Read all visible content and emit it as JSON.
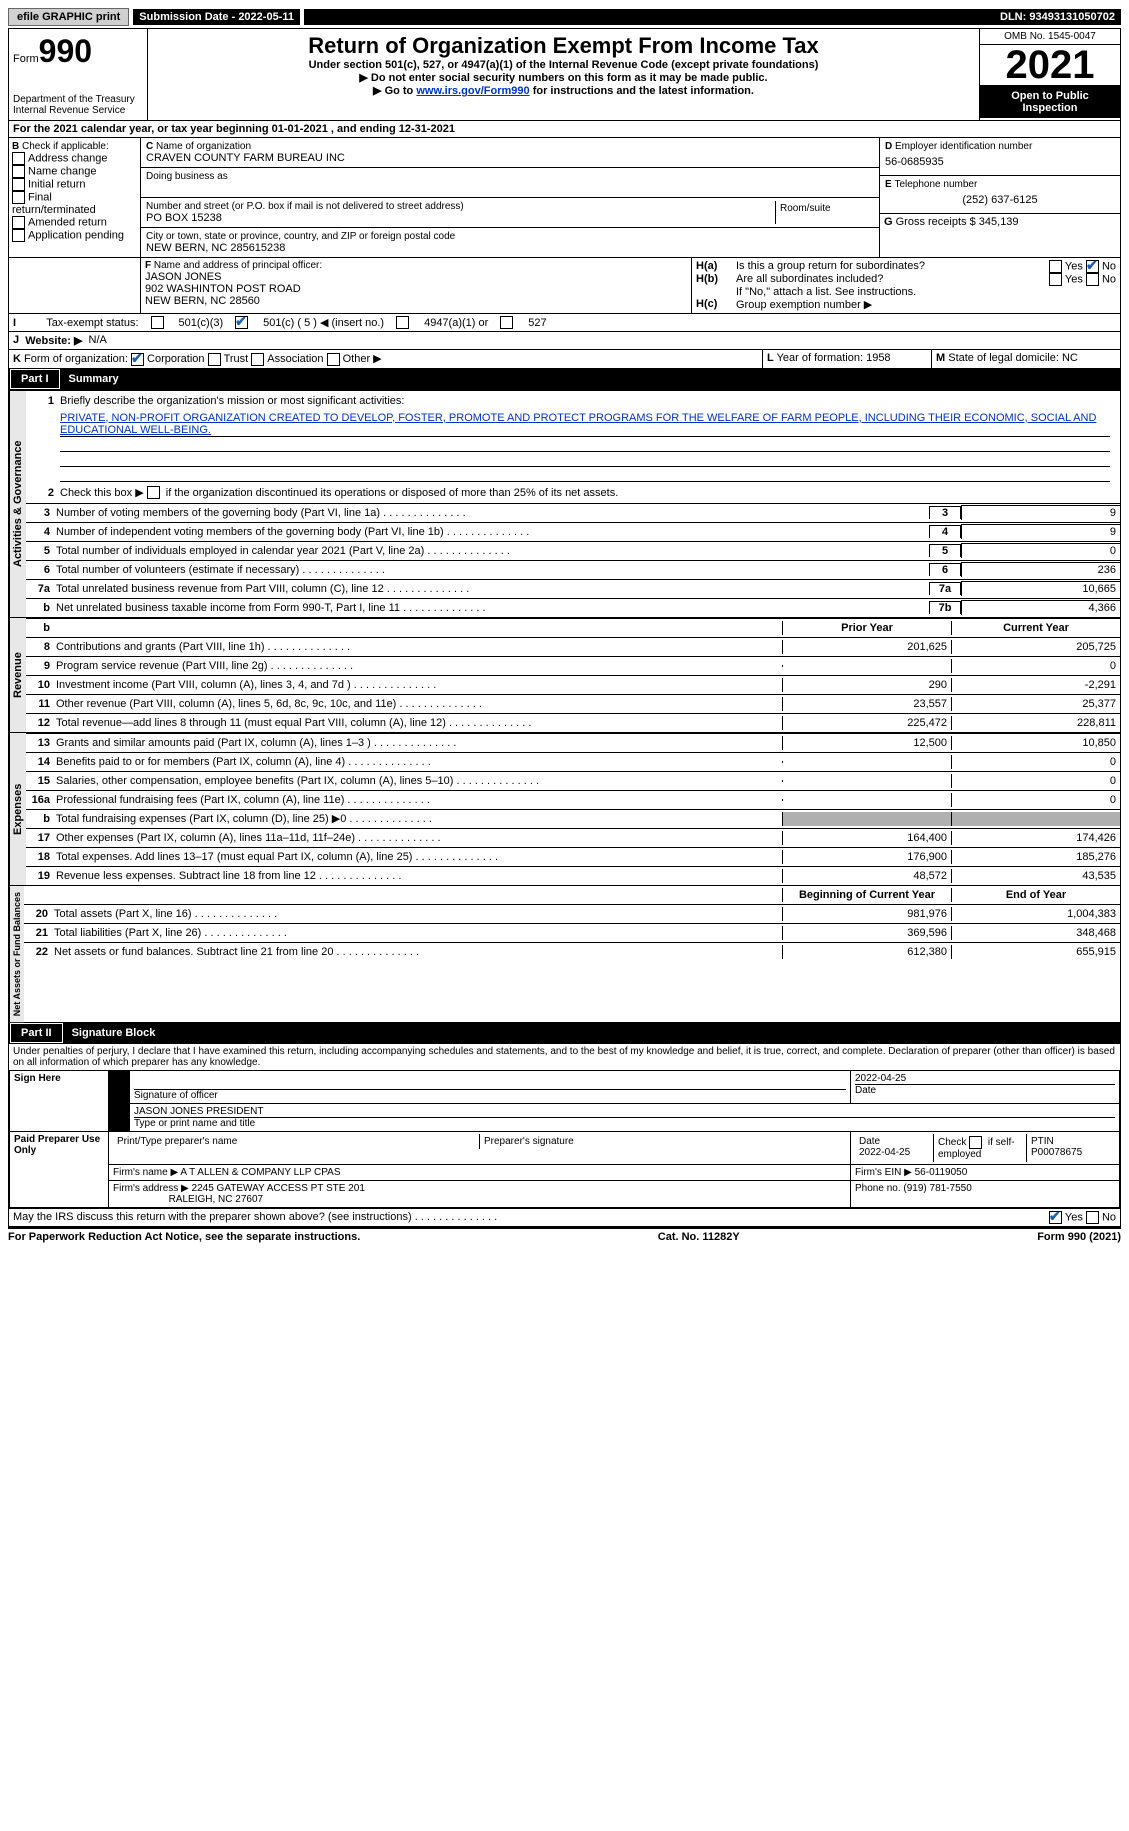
{
  "top": {
    "efile": "efile GRAPHIC print",
    "submission_label": "Submission Date - 2022-05-11",
    "dln": "DLN: 93493131050702"
  },
  "header": {
    "form_word": "Form",
    "form_num": "990",
    "dept": "Department of the Treasury Internal Revenue Service",
    "title": "Return of Organization Exempt From Income Tax",
    "sub1": "Under section 501(c), 527, or 4947(a)(1) of the Internal Revenue Code (except private foundations)",
    "sub2": "Do not enter social security numbers on this form as it may be made public.",
    "sub3_pre": "Go to ",
    "sub3_link": "www.irs.gov/Form990",
    "sub3_post": " for instructions and the latest information.",
    "omb": "OMB No. 1545-0047",
    "year": "2021",
    "open": "Open to Public Inspection"
  },
  "A": {
    "text": "For the 2021 calendar year, or tax year beginning 01-01-2021   , and ending 12-31-2021"
  },
  "B": {
    "label": "Check if applicable:",
    "items": [
      "Address change",
      "Name change",
      "Initial return",
      "Final return/terminated",
      "Amended return",
      "Application pending"
    ]
  },
  "C": {
    "name_lbl": "Name of organization",
    "name": "CRAVEN COUNTY FARM BUREAU INC",
    "dba_lbl": "Doing business as",
    "street_lbl": "Number and street (or P.O. box if mail is not delivered to street address)",
    "room_lbl": "Room/suite",
    "street": "PO BOX 15238",
    "city_lbl": "City or town, state or province, country, and ZIP or foreign postal code",
    "city": "NEW BERN, NC  285615238"
  },
  "D": {
    "lbl": "Employer identification number",
    "val": "56-0685935"
  },
  "E": {
    "lbl": "Telephone number",
    "val": "(252) 637-6125"
  },
  "G": {
    "lbl": "Gross receipts $",
    "val": "345,139"
  },
  "F": {
    "lbl": "Name and address of principal officer:",
    "name": "JASON JONES",
    "street": "902 WASHINTON POST ROAD",
    "city": "NEW BERN, NC  28560"
  },
  "H": {
    "a_lbl": "Is this a group return for subordinates?",
    "b_lbl": "Are all subordinates included?",
    "b_note": "If \"No,\" attach a list. See instructions.",
    "c_lbl": "Group exemption number ▶"
  },
  "I": {
    "lbl": "Tax-exempt status:",
    "opts": [
      "501(c)(3)",
      "501(c) ( 5 ) ◀ (insert no.)",
      "4947(a)(1) or",
      "527"
    ]
  },
  "J": {
    "lbl": "Website: ▶",
    "val": "N/A"
  },
  "K": {
    "lbl": "Form of organization:",
    "opts": [
      "Corporation",
      "Trust",
      "Association",
      "Other ▶"
    ]
  },
  "L": {
    "lbl": "Year of formation:",
    "val": "1958"
  },
  "M": {
    "lbl": "State of legal domicile:",
    "val": "NC"
  },
  "part1": {
    "num": "Part I",
    "title": "Summary",
    "l1_lbl": "Briefly describe the organization's mission or most significant activities:",
    "l1_txt": "PRIVATE, NON-PROFIT ORGANIZATION CREATED TO DEVELOP, FOSTER, PROMOTE AND PROTECT PROGRAMS FOR THE WELFARE OF FARM PEOPLE, INCLUDING THEIR ECONOMIC, SOCIAL AND EDUCATIONAL WELL-BEING.",
    "l2": "Check this box ▶      if the organization discontinued its operations or disposed of more than 25% of its net assets.",
    "rows_a": [
      {
        "n": "3",
        "t": "Number of voting members of the governing body (Part VI, line 1a)",
        "box": "3",
        "v": "9"
      },
      {
        "n": "4",
        "t": "Number of independent voting members of the governing body (Part VI, line 1b)",
        "box": "4",
        "v": "9"
      },
      {
        "n": "5",
        "t": "Total number of individuals employed in calendar year 2021 (Part V, line 2a)",
        "box": "5",
        "v": "0"
      },
      {
        "n": "6",
        "t": "Total number of volunteers (estimate if necessary)",
        "box": "6",
        "v": "236"
      },
      {
        "n": "7a",
        "t": "Total unrelated business revenue from Part VIII, column (C), line 12",
        "box": "7a",
        "v": "10,665"
      },
      {
        "n": "b",
        "t": "Net unrelated business taxable income from Form 990-T, Part I, line 11",
        "box": "7b",
        "v": "4,366"
      }
    ],
    "hdr_prior": "Prior Year",
    "hdr_curr": "Current Year",
    "rev": [
      {
        "n": "8",
        "t": "Contributions and grants (Part VIII, line 1h)",
        "p": "201,625",
        "c": "205,725"
      },
      {
        "n": "9",
        "t": "Program service revenue (Part VIII, line 2g)",
        "p": "",
        "c": "0"
      },
      {
        "n": "10",
        "t": "Investment income (Part VIII, column (A), lines 3, 4, and 7d )",
        "p": "290",
        "c": "-2,291"
      },
      {
        "n": "11",
        "t": "Other revenue (Part VIII, column (A), lines 5, 6d, 8c, 9c, 10c, and 11e)",
        "p": "23,557",
        "c": "25,377"
      },
      {
        "n": "12",
        "t": "Total revenue—add lines 8 through 11 (must equal Part VIII, column (A), line 12)",
        "p": "225,472",
        "c": "228,811"
      }
    ],
    "exp": [
      {
        "n": "13",
        "t": "Grants and similar amounts paid (Part IX, column (A), lines 1–3 )",
        "p": "12,500",
        "c": "10,850"
      },
      {
        "n": "14",
        "t": "Benefits paid to or for members (Part IX, column (A), line 4)",
        "p": "",
        "c": "0"
      },
      {
        "n": "15",
        "t": "Salaries, other compensation, employee benefits (Part IX, column (A), lines 5–10)",
        "p": "",
        "c": "0"
      },
      {
        "n": "16a",
        "t": "Professional fundraising fees (Part IX, column (A), line 11e)",
        "p": "",
        "c": "0"
      },
      {
        "n": "b",
        "t": "Total fundraising expenses (Part IX, column (D), line 25) ▶0",
        "p": "GRAY",
        "c": "GRAY"
      },
      {
        "n": "17",
        "t": "Other expenses (Part IX, column (A), lines 11a–11d, 11f–24e)",
        "p": "164,400",
        "c": "174,426"
      },
      {
        "n": "18",
        "t": "Total expenses. Add lines 13–17 (must equal Part IX, column (A), line 25)",
        "p": "176,900",
        "c": "185,276"
      },
      {
        "n": "19",
        "t": "Revenue less expenses. Subtract line 18 from line 12",
        "p": "48,572",
        "c": "43,535"
      }
    ],
    "hdr_beg": "Beginning of Current Year",
    "hdr_end": "End of Year",
    "net": [
      {
        "n": "20",
        "t": "Total assets (Part X, line 16)",
        "p": "981,976",
        "c": "1,004,383"
      },
      {
        "n": "21",
        "t": "Total liabilities (Part X, line 26)",
        "p": "369,596",
        "c": "348,468"
      },
      {
        "n": "22",
        "t": "Net assets or fund balances. Subtract line 21 from line 20",
        "p": "612,380",
        "c": "655,915"
      }
    ],
    "vert_act": "Activities & Governance",
    "vert_rev": "Revenue",
    "vert_exp": "Expenses",
    "vert_net": "Net Assets or Fund Balances"
  },
  "part2": {
    "num": "Part II",
    "title": "Signature Block",
    "decl": "Under penalties of perjury, I declare that I have examined this return, including accompanying schedules and statements, and to the best of my knowledge and belief, it is true, correct, and complete. Declaration of preparer (other than officer) is based on all information of which preparer has any knowledge.",
    "sign_here": "Sign Here",
    "sig_officer": "Signature of officer",
    "sig_date": "2022-04-25",
    "date_lbl": "Date",
    "typed": "JASON JONES PRESIDENT",
    "typed_lbl": "Type or print name and title",
    "paid": "Paid Preparer Use Only",
    "prep_name_lbl": "Print/Type preparer's name",
    "prep_sig_lbl": "Preparer's signature",
    "prep_date_lbl": "Date",
    "prep_date": "2022-04-25",
    "prep_check_lbl": "Check        if self-employed",
    "ptin_lbl": "PTIN",
    "ptin": "P00078675",
    "firm_name_lbl": "Firm's name    ▶",
    "firm_name": "A T ALLEN & COMPANY LLP CPAS",
    "firm_ein_lbl": "Firm's EIN ▶",
    "firm_ein": "56-0119050",
    "firm_addr_lbl": "Firm's address ▶",
    "firm_addr1": "2245 GATEWAY ACCESS PT STE 201",
    "firm_addr2": "RALEIGH, NC  27607",
    "phone_lbl": "Phone no.",
    "phone": "(919) 781-7550",
    "discuss": "May the IRS discuss this return with the preparer shown above? (see instructions)"
  },
  "footer": {
    "pra": "For Paperwork Reduction Act Notice, see the separate instructions.",
    "cat": "Cat. No. 11282Y",
    "form": "Form 990 (2021)"
  }
}
